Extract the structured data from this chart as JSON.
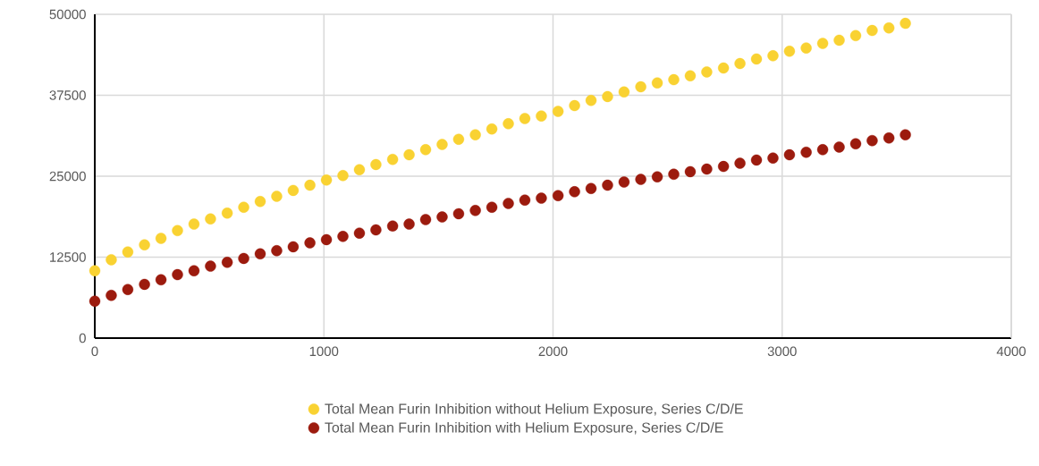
{
  "chart_data": {
    "type": "scatter",
    "x": [
      0,
      72,
      144,
      217,
      289,
      361,
      433,
      505,
      578,
      650,
      722,
      794,
      866,
      939,
      1011,
      1083,
      1155,
      1227,
      1300,
      1372,
      1444,
      1516,
      1588,
      1661,
      1733,
      1805,
      1877,
      1949,
      2022,
      2094,
      2166,
      2238,
      2310,
      2383,
      2455,
      2527,
      2599,
      2671,
      2744,
      2816,
      2888,
      2960,
      3032,
      3105,
      3177,
      3249,
      3321,
      3393,
      3466,
      3538
    ],
    "series": [
      {
        "name": "Total Mean Furin Inhibition without Helium Exposure, Series C/D/E",
        "color": "#f9d232",
        "values": [
          10400,
          12100,
          13300,
          14400,
          15400,
          16600,
          17600,
          18400,
          19300,
          20200,
          21100,
          21900,
          22800,
          23600,
          24400,
          25100,
          26000,
          26800,
          27600,
          28300,
          29100,
          29900,
          30700,
          31400,
          32300,
          33100,
          33900,
          34300,
          35000,
          35900,
          36700,
          37300,
          38000,
          38800,
          39400,
          39900,
          40500,
          41100,
          41700,
          42400,
          43100,
          43600,
          44300,
          44800,
          45500,
          46000,
          46700,
          47500,
          47900,
          48600
        ]
      },
      {
        "name": "Total Mean Furin Inhibition with Helium Exposure, Series C/D/E",
        "color": "#9c1b0e",
        "values": [
          5700,
          6600,
          7500,
          8300,
          9000,
          9800,
          10400,
          11100,
          11700,
          12300,
          13000,
          13500,
          14100,
          14700,
          15200,
          15700,
          16200,
          16700,
          17300,
          17600,
          18300,
          18700,
          19200,
          19700,
          20200,
          20800,
          21300,
          21600,
          22000,
          22600,
          23100,
          23600,
          24100,
          24500,
          24900,
          25300,
          25700,
          26100,
          26500,
          27000,
          27500,
          27800,
          28300,
          28700,
          29100,
          29500,
          30000,
          30500,
          30900,
          31400
        ]
      }
    ],
    "xlim": [
      0,
      4000
    ],
    "xticks": [
      0,
      1000,
      2000,
      3000,
      4000
    ],
    "ylim": [
      0,
      50000
    ],
    "yticks": [
      0,
      12500,
      25000,
      37500,
      50000
    ],
    "grid": true,
    "legend": "bottom",
    "marker": "circle"
  }
}
